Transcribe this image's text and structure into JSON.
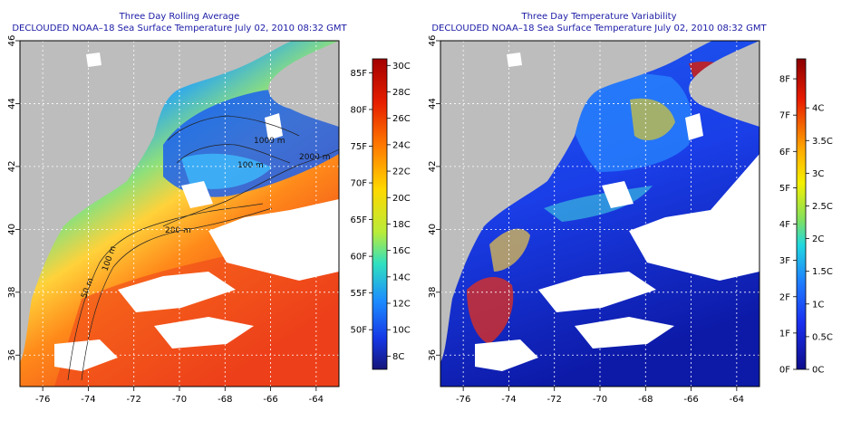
{
  "maps": [
    {
      "title": "Three Day Rolling Average",
      "subtitle": "DECLOUDED NOAA–18 Sea Surface Temperature July 02, 2010 08:32 GMT",
      "lon_labels": [
        "-76",
        "-74",
        "-72",
        "-70",
        "-68",
        "-66",
        "-64"
      ],
      "lat_labels": [
        "36",
        "38",
        "40",
        "42",
        "44",
        "46"
      ],
      "contour_labels": [
        "50 m",
        "100 m",
        "200 m",
        "1000 m",
        "2000 m",
        "100 m"
      ],
      "colorbar": {
        "left_labels": [
          "85F",
          "80F",
          "75F",
          "70F",
          "65F",
          "60F",
          "55F",
          "50F"
        ],
        "right_labels": [
          "30C",
          "28C",
          "26C",
          "24C",
          "22C",
          "20C",
          "18C",
          "16C",
          "14C",
          "12C",
          "10C",
          "8C"
        ]
      }
    },
    {
      "title": "Three Day Temperature Variability",
      "subtitle": "DECLOUDED NOAA–18 Sea Surface Temperature July 02, 2010 08:32 GMT",
      "lon_labels": [
        "-76",
        "-74",
        "-72",
        "-70",
        "-68",
        "-66",
        "-64"
      ],
      "lat_labels": [
        "36",
        "38",
        "40",
        "42",
        "44",
        "46"
      ],
      "colorbar": {
        "left_labels": [
          "8F",
          "7F",
          "6F",
          "5F",
          "4F",
          "3F",
          "2F",
          "1F",
          "0F"
        ],
        "right_labels": [
          "4C",
          "3.5C",
          "3C",
          "2.5C",
          "2C",
          "1.5C",
          "1C",
          "0.5C",
          "0C"
        ]
      }
    }
  ],
  "colors": {
    "land": "#bdbdbd",
    "cloud": "#ffffff",
    "title": "#1a1aa6"
  }
}
